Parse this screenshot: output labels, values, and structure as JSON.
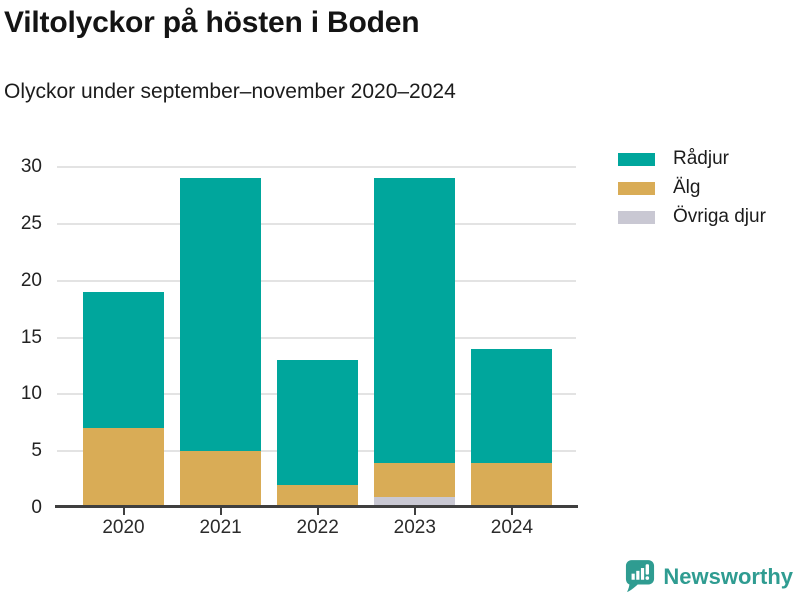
{
  "header": {
    "title": "Viltolyckor på hösten i Boden",
    "subtitle": "Olyckor under september–november 2020–2024"
  },
  "footer": {
    "brand": "Newsworthy",
    "brand_color": "#2f9c91"
  },
  "colors": {
    "radjur": "#00a69c",
    "alg": "#d9ac56",
    "ovriga": "#c9c8d3",
    "gridline": "#e3e3e3",
    "axis": "#3f3f3f"
  },
  "chart_data": {
    "type": "bar",
    "stacked": true,
    "title": "Viltolyckor på hösten i Boden",
    "subtitle": "Olyckor under september–november 2020–2024",
    "categories": [
      "2020",
      "2021",
      "2022",
      "2023",
      "2024"
    ],
    "series": [
      {
        "name": "Rådjur",
        "color": "#00a69c",
        "values": [
          12,
          24,
          11,
          25,
          10
        ]
      },
      {
        "name": "Älg",
        "color": "#d9ac56",
        "values": [
          7,
          5,
          2,
          3,
          4
        ]
      },
      {
        "name": "Övriga djur",
        "color": "#c9c8d3",
        "values": [
          0,
          0,
          0,
          1,
          0
        ]
      }
    ],
    "totals": [
      19,
      29,
      13,
      29,
      14
    ],
    "stack_order_bottom_to_top": [
      "Övriga djur",
      "Älg",
      "Rådjur"
    ],
    "xlabel": "",
    "ylabel": "",
    "yticks": [
      0,
      5,
      10,
      15,
      20,
      25,
      30
    ],
    "ylim": [
      0,
      30
    ],
    "grid": true,
    "legend_position": "top-right"
  }
}
